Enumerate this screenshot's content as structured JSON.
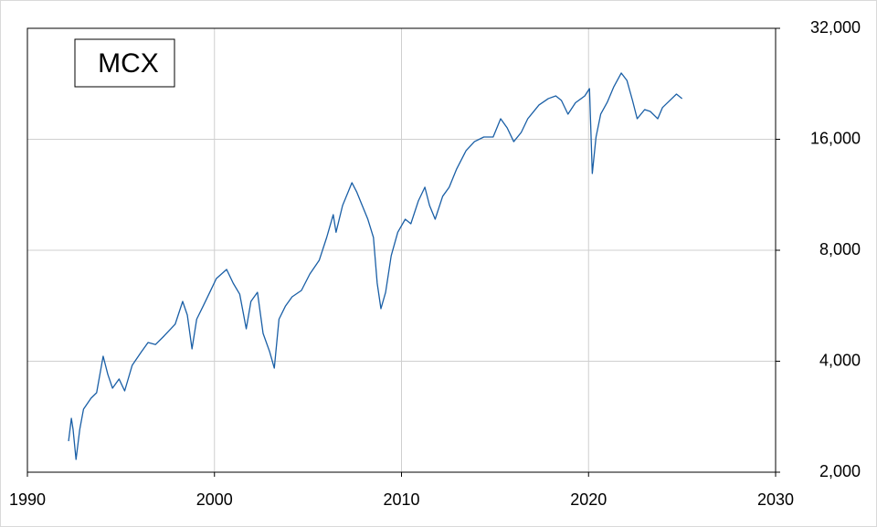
{
  "chart_data": {
    "type": "line",
    "log_scale_y": true,
    "grid": true,
    "legend": "upper left",
    "y_axis_side": "right",
    "xlim": [
      1990,
      2030
    ],
    "xticks": [
      1990,
      2000,
      2010,
      2020,
      2030
    ],
    "ylim": [
      2000,
      32000
    ],
    "yticks": [
      {
        "value": 2000,
        "label": "2,000"
      },
      {
        "value": 4000,
        "label": "4,000"
      },
      {
        "value": 8000,
        "label": "8,000"
      },
      {
        "value": 16000,
        "label": "16,000"
      },
      {
        "value": 32000,
        "label": "32,000"
      }
    ],
    "x": [
      1992.2,
      1992.35,
      1992.44,
      1992.6,
      1992.8,
      1993.0,
      1993.4,
      1993.7,
      1994.05,
      1994.3,
      1994.55,
      1994.9,
      1995.2,
      1995.6,
      1996.1,
      1996.45,
      1996.85,
      1997.3,
      1997.9,
      1998.3,
      1998.55,
      1998.8,
      1999.05,
      1999.4,
      1999.75,
      2000.1,
      2000.65,
      2001.0,
      2001.35,
      2001.7,
      2001.95,
      2002.3,
      2002.6,
      2002.95,
      2003.2,
      2003.45,
      2003.8,
      2004.15,
      2004.65,
      2005.1,
      2005.6,
      2006.0,
      2006.35,
      2006.5,
      2006.85,
      2007.35,
      2007.6,
      2007.9,
      2008.2,
      2008.5,
      2008.7,
      2008.9,
      2009.15,
      2009.45,
      2009.8,
      2010.2,
      2010.5,
      2010.9,
      2011.25,
      2011.5,
      2011.8,
      2012.2,
      2012.55,
      2012.95,
      2013.45,
      2013.9,
      2014.4,
      2014.9,
      2015.3,
      2015.65,
      2016.0,
      2016.4,
      2016.75,
      2017.35,
      2017.85,
      2018.25,
      2018.55,
      2018.9,
      2019.3,
      2019.8,
      2020.05,
      2020.2,
      2020.4,
      2020.65,
      2021.0,
      2021.35,
      2021.75,
      2022.05,
      2022.35,
      2022.6,
      2023.0,
      2023.3,
      2023.7,
      2023.95,
      2024.45,
      2024.7,
      2025.0
    ],
    "series": [
      {
        "name": "MCX",
        "color": "#1a5fa6",
        "values": [
          2428,
          2800,
          2615,
          2166,
          2615,
          2965,
          3175,
          3285,
          4127,
          3683,
          3380,
          3580,
          3323,
          3898,
          4246,
          4496,
          4440,
          4680,
          5040,
          5812,
          5336,
          4320,
          5200,
          5650,
          6152,
          6704,
          7097,
          6515,
          6083,
          4897,
          5812,
          6152,
          4760,
          4246,
          3832,
          5200,
          5650,
          5980,
          6224,
          6897,
          7512,
          8665,
          9993,
          8950,
          10580,
          12200,
          11530,
          10580,
          9712,
          8665,
          6515,
          5553,
          6152,
          7733,
          8950,
          9712,
          9440,
          10885,
          11860,
          10580,
          9712,
          11205,
          11860,
          13300,
          14900,
          15770,
          16230,
          16230,
          18190,
          17180,
          15770,
          16700,
          18190,
          19820,
          20630,
          20980,
          20390,
          18720,
          20100,
          20980,
          21960,
          12920,
          16230,
          18720,
          20160,
          22210,
          24200,
          23120,
          20390,
          18190,
          19260,
          19040,
          18190,
          19500,
          20630,
          21220,
          20630
        ]
      }
    ]
  }
}
